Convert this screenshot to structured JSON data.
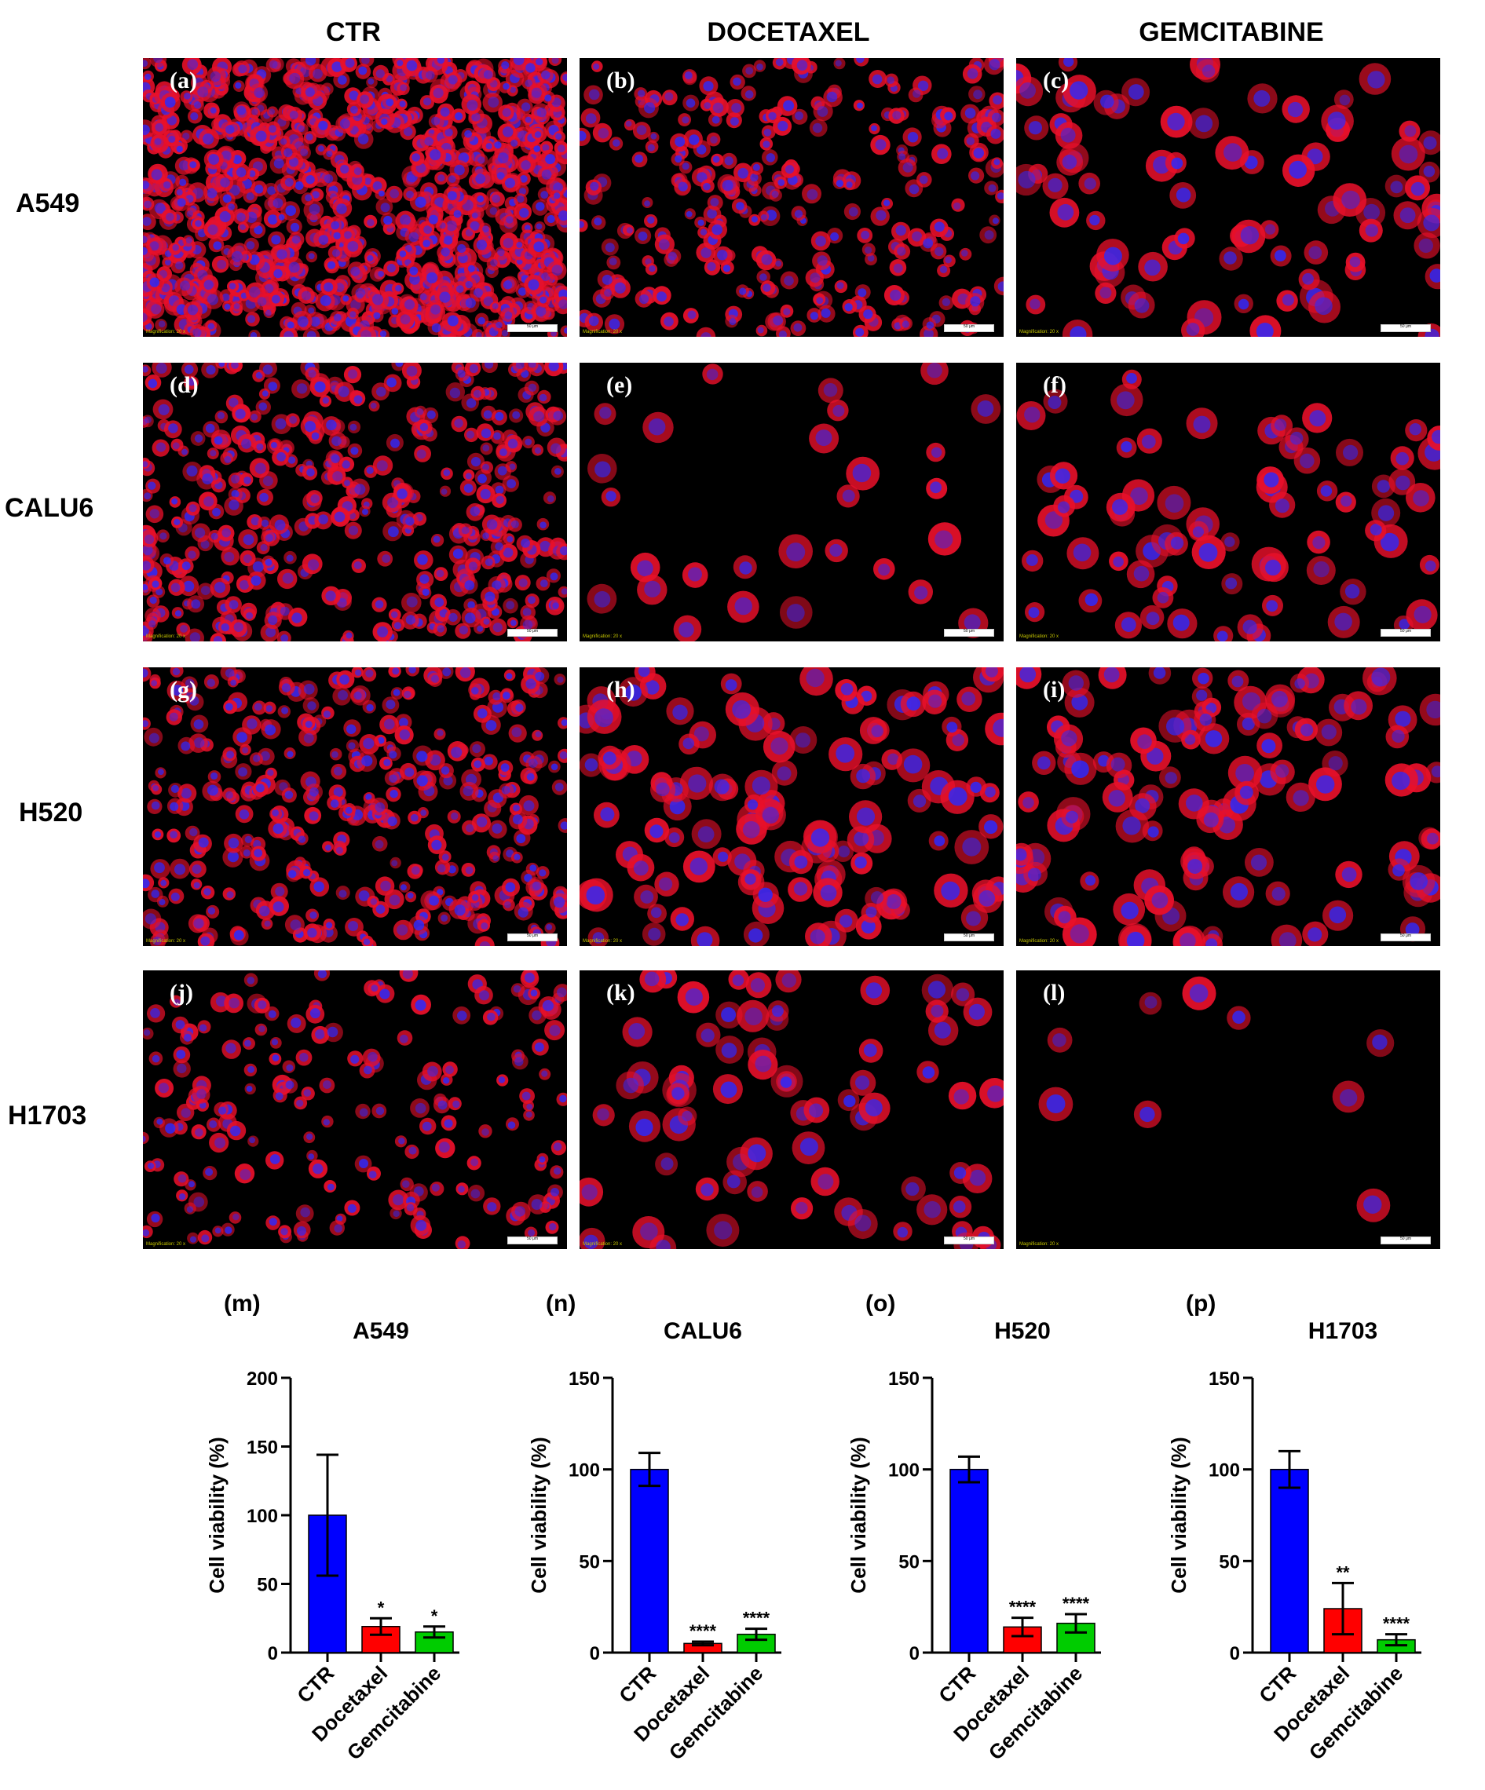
{
  "columns": [
    "CTR",
    "DOCETAXEL",
    "GEMCITABINE"
  ],
  "rows": [
    "A549",
    "CALU6",
    "H520",
    "H1703"
  ],
  "panels": [
    {
      "label": "(a)",
      "scale": "50 μm",
      "mag": "Magnification: 20 x"
    },
    {
      "label": "(b)",
      "scale": "50 μm",
      "mag": "Magnification: 20 x"
    },
    {
      "label": "(c)",
      "scale": "50 μm",
      "mag": "Magnification: 20 x"
    },
    {
      "label": "(d)",
      "scale": "50 μm",
      "mag": "Magnification: 20 x"
    },
    {
      "label": "(e)",
      "scale": "50 μm",
      "mag": "Magnification: 20 x"
    },
    {
      "label": "(f)",
      "scale": "50 μm",
      "mag": "Magnification: 20 x"
    },
    {
      "label": "(g)",
      "scale": "50 μm",
      "mag": "Magnification: 20 x"
    },
    {
      "label": "(h)",
      "scale": "50 μm",
      "mag": "Magnification: 20 x"
    },
    {
      "label": "(i)",
      "scale": "50 μm",
      "mag": "Magnification: 20 x"
    },
    {
      "label": "(j)",
      "scale": "50 μm",
      "mag": "Magnification: 20 x"
    },
    {
      "label": "(k)",
      "scale": "50 μm",
      "mag": "Magnification: 20 x"
    },
    {
      "label": "(l)",
      "scale": "50 μm",
      "mag": "Magnification: 20 x"
    }
  ],
  "colors": {
    "ctr": "#0000ff",
    "docetaxel": "#ff0000",
    "gemcitabine": "#00cc00",
    "stain_red": "#e8102a",
    "stain_blue": "#2a2aff"
  },
  "chart_data": [
    {
      "type": "bar",
      "panel_label": "(m)",
      "title": "A549",
      "ylabel": "Cell viability (%)",
      "categories": [
        "CTR",
        "Docetaxel",
        "Gemcitabine"
      ],
      "values": [
        100,
        19,
        15
      ],
      "errors": [
        44,
        6,
        4
      ],
      "significance": [
        "",
        "*",
        "*"
      ],
      "ylim": [
        0,
        200
      ],
      "yticks": [
        0,
        50,
        100,
        150,
        200
      ]
    },
    {
      "type": "bar",
      "panel_label": "(n)",
      "title": "CALU6",
      "ylabel": "Cell viability (%)",
      "categories": [
        "CTR",
        "Docetaxel",
        "Gemcitabine"
      ],
      "values": [
        100,
        5,
        10
      ],
      "errors": [
        9,
        1,
        3
      ],
      "significance": [
        "",
        "****",
        "****"
      ],
      "ylim": [
        0,
        150
      ],
      "yticks": [
        0,
        50,
        100,
        150
      ]
    },
    {
      "type": "bar",
      "panel_label": "(o)",
      "title": "H520",
      "ylabel": "Cell viability (%)",
      "categories": [
        "CTR",
        "Docetaxel",
        "Gemcitabine"
      ],
      "values": [
        100,
        14,
        16
      ],
      "errors": [
        7,
        5,
        5
      ],
      "significance": [
        "",
        "****",
        "****"
      ],
      "ylim": [
        0,
        150
      ],
      "yticks": [
        0,
        50,
        100,
        150
      ]
    },
    {
      "type": "bar",
      "panel_label": "(p)",
      "title": "H1703",
      "ylabel": "Cell viability (%)",
      "categories": [
        "CTR",
        "Docetaxel",
        "Gemcitabine"
      ],
      "values": [
        100,
        24,
        7
      ],
      "errors": [
        10,
        14,
        3
      ],
      "significance": [
        "",
        "**",
        "****"
      ],
      "ylim": [
        0,
        150
      ],
      "yticks": [
        0,
        50,
        100,
        150
      ]
    }
  ]
}
